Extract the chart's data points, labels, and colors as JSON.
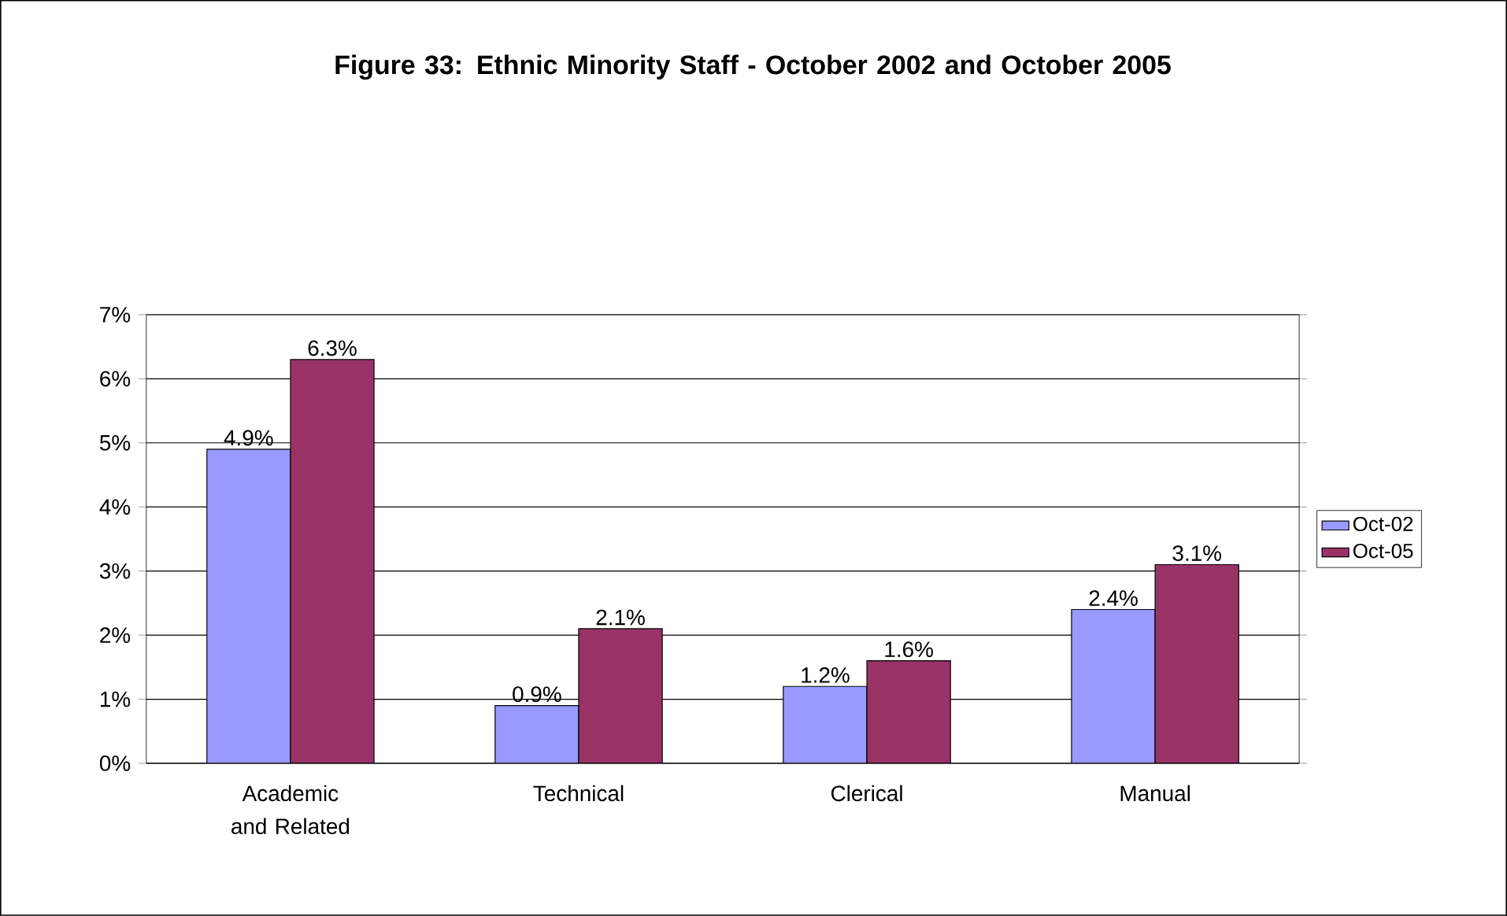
{
  "chart_data": {
    "type": "bar",
    "title": "Figure 33: Ethnic Minority Staff - October 2002 and October 2005",
    "categories": [
      "Academic and Related",
      "Technical",
      "Clerical",
      "Manual"
    ],
    "series": [
      {
        "name": "Oct-02",
        "color": "#9999ff",
        "values": [
          4.9,
          0.9,
          1.2,
          2.4
        ],
        "value_labels": [
          "4.9%",
          "0.9%",
          "1.2%",
          "2.4%"
        ]
      },
      {
        "name": "Oct-05",
        "color": "#993366",
        "values": [
          6.3,
          2.1,
          1.6,
          3.1
        ],
        "value_labels": [
          "6.3%",
          "2.1%",
          "1.6%",
          "3.1%"
        ]
      }
    ],
    "ylim": [
      0,
      7
    ],
    "yticks": [
      {
        "value": 0,
        "label": "0%"
      },
      {
        "value": 1,
        "label": "1%"
      },
      {
        "value": 2,
        "label": "2%"
      },
      {
        "value": 3,
        "label": "3%"
      },
      {
        "value": 4,
        "label": "4%"
      },
      {
        "value": 5,
        "label": "5%"
      },
      {
        "value": 6,
        "label": "6%"
      },
      {
        "value": 7,
        "label": "7%"
      }
    ],
    "grid": "y",
    "legend": "right"
  }
}
